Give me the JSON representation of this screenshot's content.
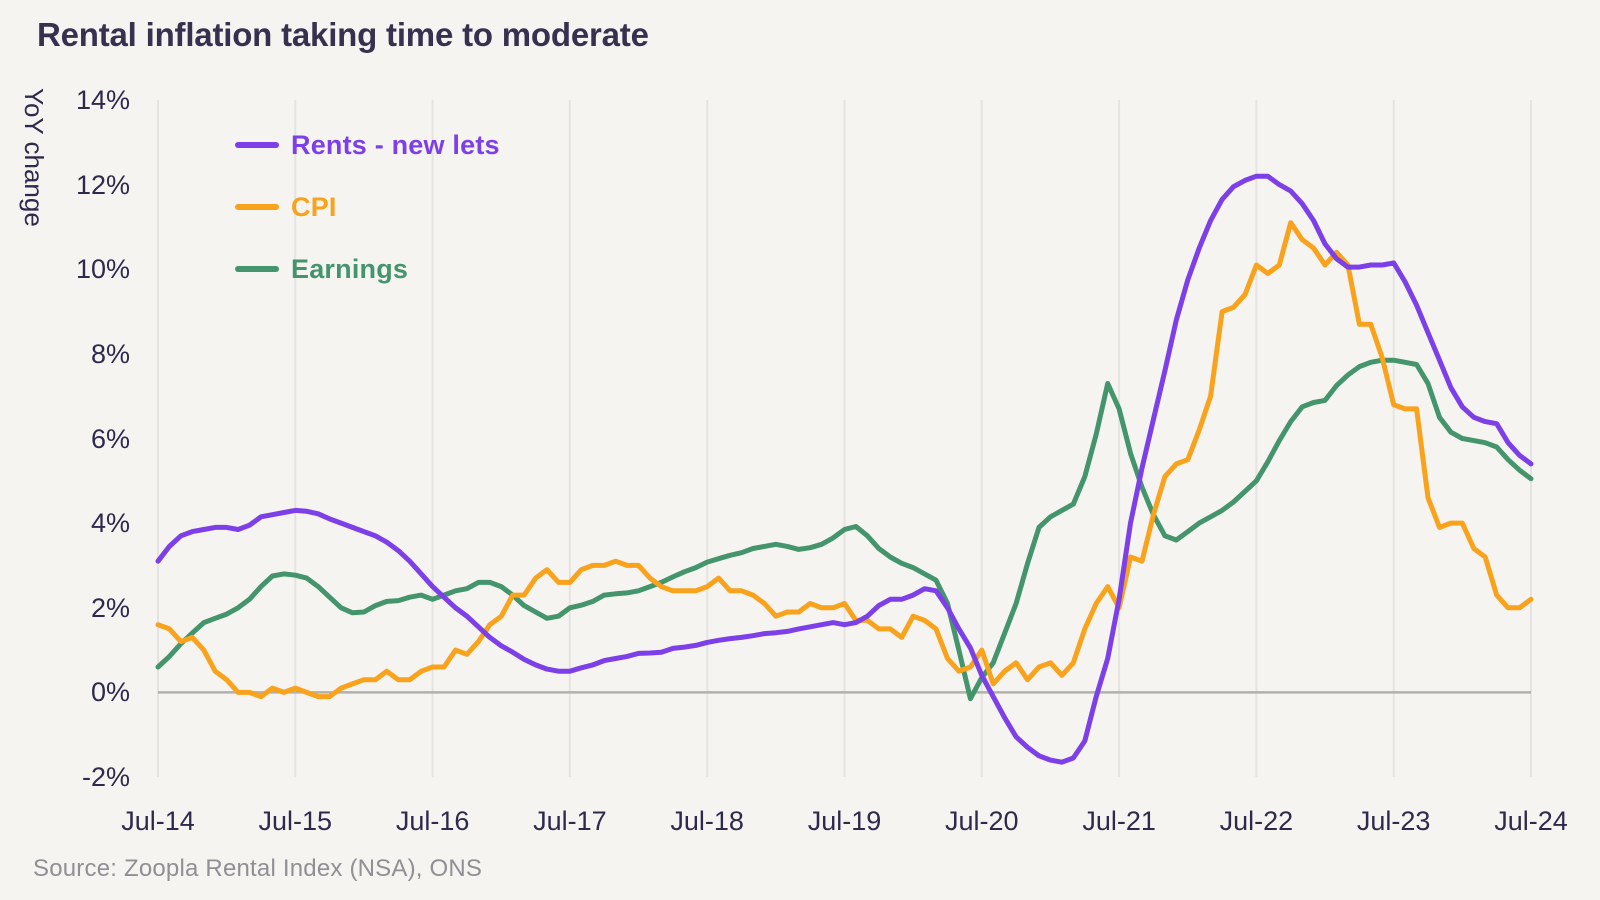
{
  "title": "Rental inflation taking time to moderate",
  "source": "Source: Zoopla Rental Index (NSA), ONS",
  "colors": {
    "background": "#f5f4f1",
    "grid": "#e6e4e1",
    "zero_line": "#b1b0ad",
    "title_text": "#37304f",
    "axis_text": "#2e2a4b",
    "source_text": "#908f94",
    "rents": "#7c3fe8",
    "cpi": "#f9a21c",
    "earnings": "#44946c"
  },
  "y_axis": {
    "label": "YoY change",
    "ticks": [
      "14%",
      "12%",
      "10%",
      "8%",
      "6%",
      "4%",
      "2%",
      "0%",
      "-2%"
    ]
  },
  "x_axis": {
    "ticks": [
      "Jul-14",
      "Jul-15",
      "Jul-16",
      "Jul-17",
      "Jul-18",
      "Jul-19",
      "Jul-20",
      "Jul-21",
      "Jul-22",
      "Jul-23",
      "Jul-24"
    ]
  },
  "legend": [
    {
      "id": "rents-new-lets",
      "label": "Rents - new lets",
      "color": "#7c3fe8"
    },
    {
      "id": "cpi",
      "label": "CPI",
      "color": "#f9a21c"
    },
    {
      "id": "earnings",
      "label": "Earnings",
      "color": "#44946c"
    }
  ],
  "chart_data": {
    "type": "line",
    "title": "Rental inflation taking time to moderate",
    "xlabel": "",
    "ylabel": "YoY change",
    "ylim": [
      -2,
      14
    ],
    "x_start": "2014-07",
    "x_end": "2024-07",
    "x_interval": "monthly",
    "grid": "vertical-yearly",
    "legend_position": "top-left-inside",
    "series": [
      {
        "id": "rents-new-lets",
        "name": "Rents - new lets",
        "color": "#7c3fe8",
        "values": [
          3.1,
          3.45,
          3.7,
          3.8,
          3.85,
          3.9,
          3.9,
          3.85,
          3.95,
          4.15,
          4.2,
          4.25,
          4.3,
          4.28,
          4.22,
          4.1,
          4.0,
          3.9,
          3.8,
          3.7,
          3.55,
          3.35,
          3.1,
          2.8,
          2.5,
          2.25,
          2.0,
          1.8,
          1.55,
          1.3,
          1.1,
          0.95,
          0.78,
          0.65,
          0.55,
          0.5,
          0.5,
          0.58,
          0.65,
          0.75,
          0.8,
          0.85,
          0.92,
          0.93,
          0.95,
          1.04,
          1.07,
          1.11,
          1.18,
          1.23,
          1.27,
          1.3,
          1.34,
          1.39,
          1.41,
          1.44,
          1.5,
          1.55,
          1.6,
          1.65,
          1.6,
          1.65,
          1.8,
          2.05,
          2.2,
          2.2,
          2.3,
          2.45,
          2.4,
          2.0,
          1.5,
          1.05,
          0.4,
          -0.1,
          -0.6,
          -1.05,
          -1.3,
          -1.5,
          -1.6,
          -1.65,
          -1.55,
          -1.15,
          -0.1,
          0.8,
          2.2,
          4.0,
          5.3,
          6.45,
          7.6,
          8.8,
          9.75,
          10.5,
          11.15,
          11.65,
          11.95,
          12.1,
          12.2,
          12.2,
          12.0,
          11.85,
          11.55,
          11.15,
          10.6,
          10.25,
          10.05,
          10.05,
          10.1,
          10.1,
          10.15,
          9.7,
          9.15,
          8.5,
          7.85,
          7.2,
          6.75,
          6.5,
          6.4,
          6.35,
          5.9,
          5.6,
          5.4
        ]
      },
      {
        "id": "cpi",
        "name": "CPI",
        "color": "#f9a21c",
        "values": [
          1.6,
          1.5,
          1.2,
          1.3,
          1.0,
          0.5,
          0.3,
          0.0,
          0.0,
          -0.1,
          0.1,
          0.0,
          0.1,
          0.0,
          -0.1,
          -0.1,
          0.1,
          0.2,
          0.3,
          0.3,
          0.5,
          0.3,
          0.3,
          0.5,
          0.6,
          0.6,
          1.0,
          0.9,
          1.2,
          1.6,
          1.8,
          2.3,
          2.3,
          2.7,
          2.9,
          2.6,
          2.6,
          2.9,
          3.0,
          3.0,
          3.1,
          3.0,
          3.0,
          2.7,
          2.5,
          2.4,
          2.4,
          2.4,
          2.5,
          2.7,
          2.4,
          2.4,
          2.3,
          2.1,
          1.8,
          1.9,
          1.9,
          2.1,
          2.0,
          2.0,
          2.1,
          1.7,
          1.7,
          1.5,
          1.5,
          1.3,
          1.8,
          1.7,
          1.5,
          0.8,
          0.5,
          0.6,
          1.0,
          0.2,
          0.5,
          0.7,
          0.3,
          0.6,
          0.7,
          0.4,
          0.7,
          1.5,
          2.1,
          2.5,
          2.0,
          3.2,
          3.1,
          4.2,
          5.1,
          5.4,
          5.5,
          6.2,
          7.0,
          9.0,
          9.1,
          9.4,
          10.1,
          9.9,
          10.1,
          11.1,
          10.7,
          10.5,
          10.1,
          10.4,
          10.1,
          8.7,
          8.7,
          7.9,
          6.8,
          6.7,
          6.7,
          4.6,
          3.9,
          4.0,
          4.0,
          3.4,
          3.2,
          2.3,
          2.0,
          2.0,
          2.2
        ]
      },
      {
        "id": "earnings",
        "name": "Earnings",
        "color": "#44946c",
        "values": [
          0.6,
          0.85,
          1.15,
          1.4,
          1.65,
          1.75,
          1.85,
          2.0,
          2.2,
          2.5,
          2.75,
          2.8,
          2.77,
          2.7,
          2.5,
          2.25,
          2.0,
          1.88,
          1.9,
          2.05,
          2.15,
          2.17,
          2.25,
          2.3,
          2.2,
          2.3,
          2.4,
          2.45,
          2.6,
          2.6,
          2.5,
          2.3,
          2.05,
          1.9,
          1.75,
          1.8,
          2.0,
          2.06,
          2.15,
          2.3,
          2.33,
          2.35,
          2.4,
          2.5,
          2.6,
          2.73,
          2.85,
          2.95,
          3.08,
          3.16,
          3.24,
          3.3,
          3.4,
          3.45,
          3.5,
          3.45,
          3.38,
          3.42,
          3.5,
          3.65,
          3.85,
          3.92,
          3.7,
          3.4,
          3.2,
          3.05,
          2.95,
          2.8,
          2.65,
          2.1,
          1.0,
          -0.15,
          0.35,
          0.7,
          1.4,
          2.1,
          3.05,
          3.9,
          4.15,
          4.3,
          4.45,
          5.1,
          6.1,
          7.3,
          6.7,
          5.65,
          4.85,
          4.2,
          3.7,
          3.6,
          3.8,
          4.0,
          4.15,
          4.3,
          4.5,
          4.75,
          5.0,
          5.45,
          5.95,
          6.4,
          6.75,
          6.85,
          6.9,
          7.25,
          7.5,
          7.7,
          7.8,
          7.85,
          7.85,
          7.8,
          7.75,
          7.3,
          6.5,
          6.15,
          6.0,
          5.95,
          5.9,
          5.8,
          5.5,
          5.25,
          5.05
        ]
      }
    ]
  }
}
